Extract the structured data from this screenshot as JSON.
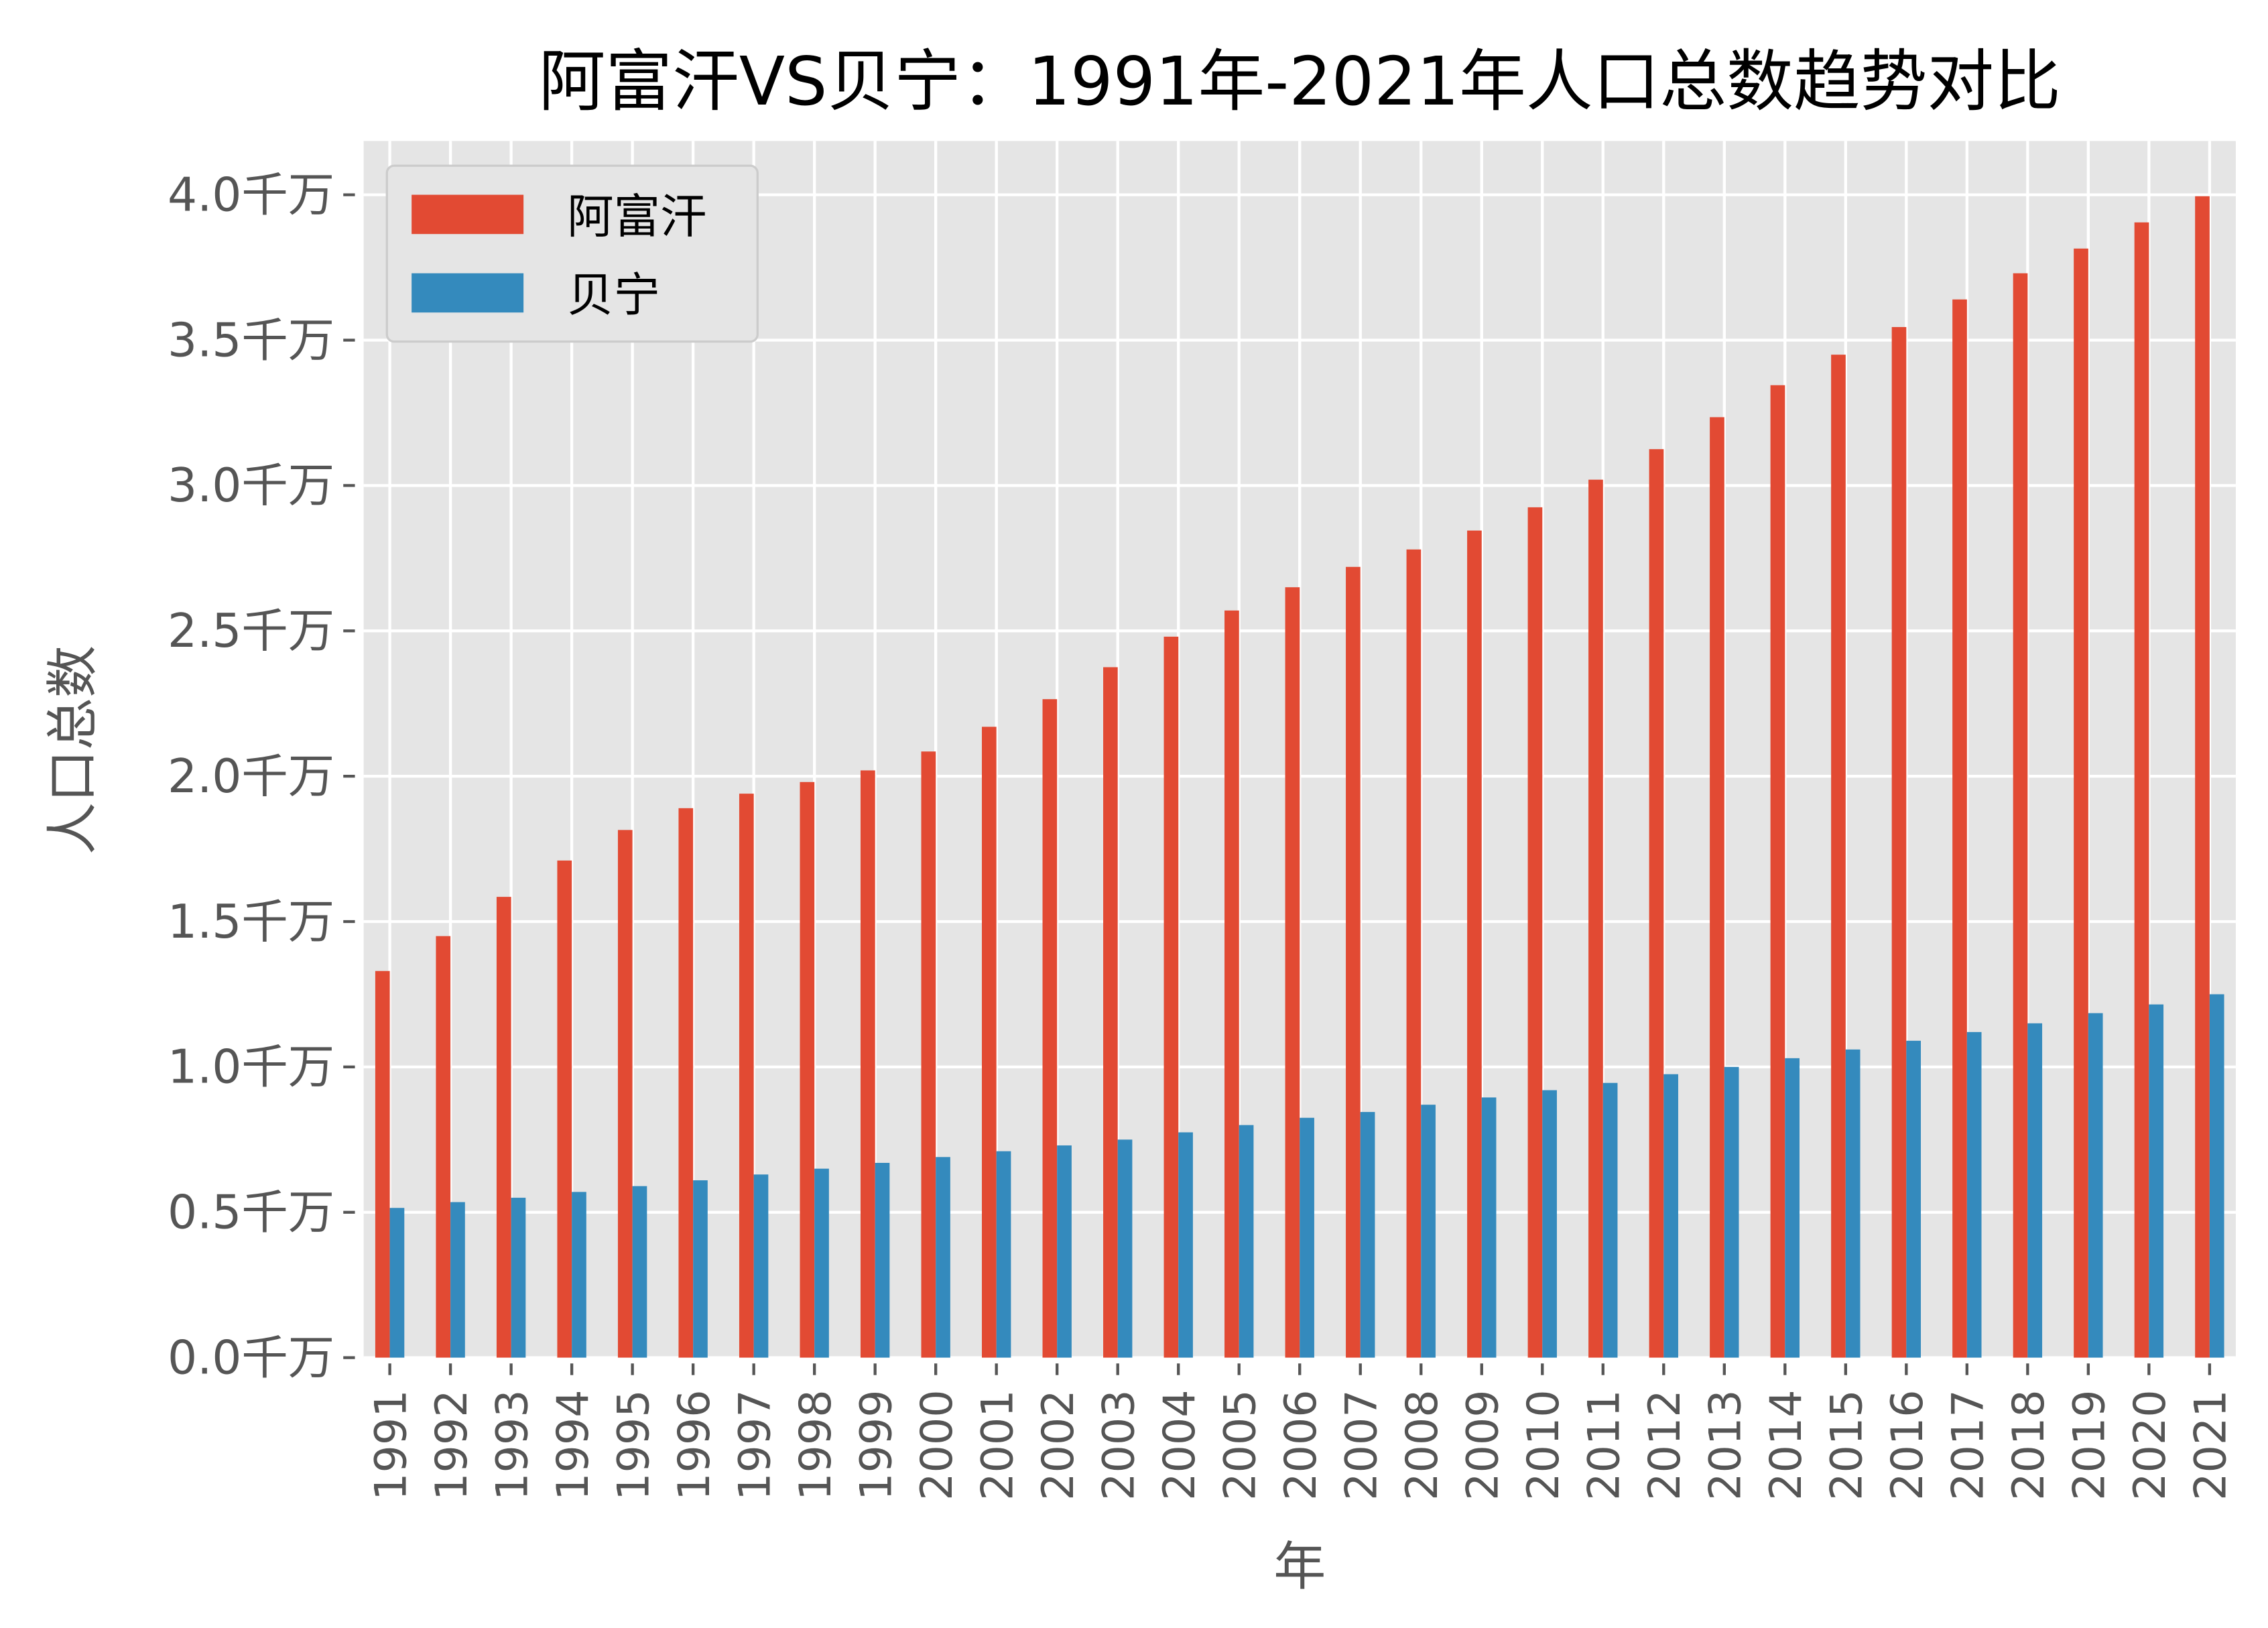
{
  "chart_data": {
    "type": "bar",
    "title": "阿富汗VS贝宁：1991年-2021年人口总数趋势对比",
    "xlabel": "年",
    "ylabel": "人口总数",
    "ylim": [
      0,
      4.185
    ],
    "yticks": [
      0,
      0.5,
      1.0,
      1.5,
      2.0,
      2.5,
      3.0,
      3.5,
      4.0
    ],
    "ytick_labels": [
      "0.0千万",
      "0.5千万",
      "1.0千万",
      "1.5千万",
      "2.0千万",
      "2.5千万",
      "3.0千万",
      "3.5千万",
      "4.0千万"
    ],
    "grid": true,
    "legend_position": "top-left",
    "categories": [
      "1991",
      "1992",
      "1993",
      "1994",
      "1995",
      "1996",
      "1997",
      "1998",
      "1999",
      "2000",
      "2001",
      "2002",
      "2003",
      "2004",
      "2005",
      "2006",
      "2007",
      "2008",
      "2009",
      "2010",
      "2011",
      "2012",
      "2013",
      "2014",
      "2015",
      "2016",
      "2017",
      "2018",
      "2019",
      "2020",
      "2021"
    ],
    "series": [
      {
        "name": "阿富汗",
        "color": "#E24A33",
        "values": [
          1.33,
          1.45,
          1.585,
          1.71,
          1.815,
          1.89,
          1.94,
          1.98,
          2.02,
          2.085,
          2.17,
          2.265,
          2.375,
          2.48,
          2.57,
          2.65,
          2.72,
          2.78,
          2.845,
          2.925,
          3.02,
          3.125,
          3.235,
          3.345,
          3.45,
          3.545,
          3.64,
          3.73,
          3.815,
          3.905,
          3.995
        ]
      },
      {
        "name": "贝宁",
        "color": "#348ABD",
        "values": [
          0.515,
          0.535,
          0.55,
          0.57,
          0.59,
          0.61,
          0.63,
          0.65,
          0.67,
          0.69,
          0.71,
          0.73,
          0.75,
          0.775,
          0.8,
          0.825,
          0.845,
          0.87,
          0.895,
          0.92,
          0.945,
          0.975,
          1.0,
          1.03,
          1.06,
          1.09,
          1.12,
          1.15,
          1.185,
          1.215,
          1.25
        ]
      }
    ]
  }
}
